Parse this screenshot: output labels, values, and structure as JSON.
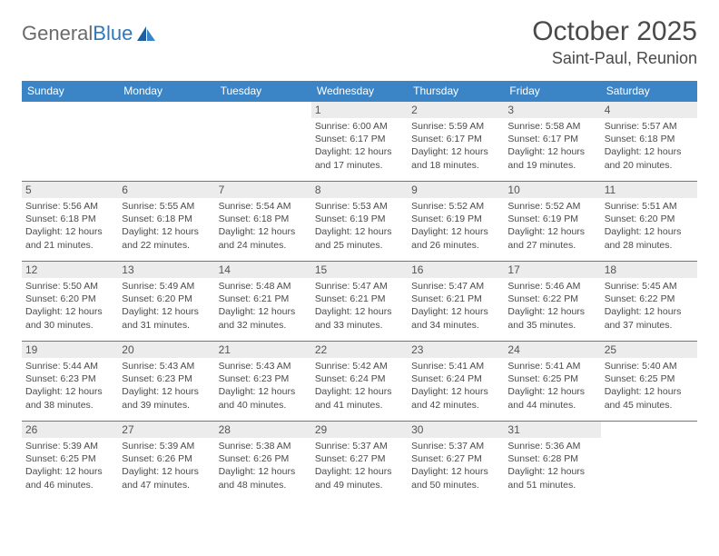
{
  "brand": {
    "name_part1": "General",
    "name_part2": "Blue"
  },
  "title": "October 2025",
  "location": "Saint-Paul, Reunion",
  "colors": {
    "header_bg": "#3b85c6",
    "header_text": "#ffffff",
    "daynum_bg": "#ececec",
    "row_border": "#3b85c6",
    "brand_gray": "#6a6a6a",
    "brand_blue": "#2f78bd"
  },
  "weekday_labels": [
    "Sunday",
    "Monday",
    "Tuesday",
    "Wednesday",
    "Thursday",
    "Friday",
    "Saturday"
  ],
  "weeks": [
    [
      {
        "day": "",
        "sunrise": "",
        "sunset": "",
        "daylight": ""
      },
      {
        "day": "",
        "sunrise": "",
        "sunset": "",
        "daylight": ""
      },
      {
        "day": "",
        "sunrise": "",
        "sunset": "",
        "daylight": ""
      },
      {
        "day": "1",
        "sunrise": "Sunrise: 6:00 AM",
        "sunset": "Sunset: 6:17 PM",
        "daylight": "Daylight: 12 hours and 17 minutes."
      },
      {
        "day": "2",
        "sunrise": "Sunrise: 5:59 AM",
        "sunset": "Sunset: 6:17 PM",
        "daylight": "Daylight: 12 hours and 18 minutes."
      },
      {
        "day": "3",
        "sunrise": "Sunrise: 5:58 AM",
        "sunset": "Sunset: 6:17 PM",
        "daylight": "Daylight: 12 hours and 19 minutes."
      },
      {
        "day": "4",
        "sunrise": "Sunrise: 5:57 AM",
        "sunset": "Sunset: 6:18 PM",
        "daylight": "Daylight: 12 hours and 20 minutes."
      }
    ],
    [
      {
        "day": "5",
        "sunrise": "Sunrise: 5:56 AM",
        "sunset": "Sunset: 6:18 PM",
        "daylight": "Daylight: 12 hours and 21 minutes."
      },
      {
        "day": "6",
        "sunrise": "Sunrise: 5:55 AM",
        "sunset": "Sunset: 6:18 PM",
        "daylight": "Daylight: 12 hours and 22 minutes."
      },
      {
        "day": "7",
        "sunrise": "Sunrise: 5:54 AM",
        "sunset": "Sunset: 6:18 PM",
        "daylight": "Daylight: 12 hours and 24 minutes."
      },
      {
        "day": "8",
        "sunrise": "Sunrise: 5:53 AM",
        "sunset": "Sunset: 6:19 PM",
        "daylight": "Daylight: 12 hours and 25 minutes."
      },
      {
        "day": "9",
        "sunrise": "Sunrise: 5:52 AM",
        "sunset": "Sunset: 6:19 PM",
        "daylight": "Daylight: 12 hours and 26 minutes."
      },
      {
        "day": "10",
        "sunrise": "Sunrise: 5:52 AM",
        "sunset": "Sunset: 6:19 PM",
        "daylight": "Daylight: 12 hours and 27 minutes."
      },
      {
        "day": "11",
        "sunrise": "Sunrise: 5:51 AM",
        "sunset": "Sunset: 6:20 PM",
        "daylight": "Daylight: 12 hours and 28 minutes."
      }
    ],
    [
      {
        "day": "12",
        "sunrise": "Sunrise: 5:50 AM",
        "sunset": "Sunset: 6:20 PM",
        "daylight": "Daylight: 12 hours and 30 minutes."
      },
      {
        "day": "13",
        "sunrise": "Sunrise: 5:49 AM",
        "sunset": "Sunset: 6:20 PM",
        "daylight": "Daylight: 12 hours and 31 minutes."
      },
      {
        "day": "14",
        "sunrise": "Sunrise: 5:48 AM",
        "sunset": "Sunset: 6:21 PM",
        "daylight": "Daylight: 12 hours and 32 minutes."
      },
      {
        "day": "15",
        "sunrise": "Sunrise: 5:47 AM",
        "sunset": "Sunset: 6:21 PM",
        "daylight": "Daylight: 12 hours and 33 minutes."
      },
      {
        "day": "16",
        "sunrise": "Sunrise: 5:47 AM",
        "sunset": "Sunset: 6:21 PM",
        "daylight": "Daylight: 12 hours and 34 minutes."
      },
      {
        "day": "17",
        "sunrise": "Sunrise: 5:46 AM",
        "sunset": "Sunset: 6:22 PM",
        "daylight": "Daylight: 12 hours and 35 minutes."
      },
      {
        "day": "18",
        "sunrise": "Sunrise: 5:45 AM",
        "sunset": "Sunset: 6:22 PM",
        "daylight": "Daylight: 12 hours and 37 minutes."
      }
    ],
    [
      {
        "day": "19",
        "sunrise": "Sunrise: 5:44 AM",
        "sunset": "Sunset: 6:23 PM",
        "daylight": "Daylight: 12 hours and 38 minutes."
      },
      {
        "day": "20",
        "sunrise": "Sunrise: 5:43 AM",
        "sunset": "Sunset: 6:23 PM",
        "daylight": "Daylight: 12 hours and 39 minutes."
      },
      {
        "day": "21",
        "sunrise": "Sunrise: 5:43 AM",
        "sunset": "Sunset: 6:23 PM",
        "daylight": "Daylight: 12 hours and 40 minutes."
      },
      {
        "day": "22",
        "sunrise": "Sunrise: 5:42 AM",
        "sunset": "Sunset: 6:24 PM",
        "daylight": "Daylight: 12 hours and 41 minutes."
      },
      {
        "day": "23",
        "sunrise": "Sunrise: 5:41 AM",
        "sunset": "Sunset: 6:24 PM",
        "daylight": "Daylight: 12 hours and 42 minutes."
      },
      {
        "day": "24",
        "sunrise": "Sunrise: 5:41 AM",
        "sunset": "Sunset: 6:25 PM",
        "daylight": "Daylight: 12 hours and 44 minutes."
      },
      {
        "day": "25",
        "sunrise": "Sunrise: 5:40 AM",
        "sunset": "Sunset: 6:25 PM",
        "daylight": "Daylight: 12 hours and 45 minutes."
      }
    ],
    [
      {
        "day": "26",
        "sunrise": "Sunrise: 5:39 AM",
        "sunset": "Sunset: 6:25 PM",
        "daylight": "Daylight: 12 hours and 46 minutes."
      },
      {
        "day": "27",
        "sunrise": "Sunrise: 5:39 AM",
        "sunset": "Sunset: 6:26 PM",
        "daylight": "Daylight: 12 hours and 47 minutes."
      },
      {
        "day": "28",
        "sunrise": "Sunrise: 5:38 AM",
        "sunset": "Sunset: 6:26 PM",
        "daylight": "Daylight: 12 hours and 48 minutes."
      },
      {
        "day": "29",
        "sunrise": "Sunrise: 5:37 AM",
        "sunset": "Sunset: 6:27 PM",
        "daylight": "Daylight: 12 hours and 49 minutes."
      },
      {
        "day": "30",
        "sunrise": "Sunrise: 5:37 AM",
        "sunset": "Sunset: 6:27 PM",
        "daylight": "Daylight: 12 hours and 50 minutes."
      },
      {
        "day": "31",
        "sunrise": "Sunrise: 5:36 AM",
        "sunset": "Sunset: 6:28 PM",
        "daylight": "Daylight: 12 hours and 51 minutes."
      },
      {
        "day": "",
        "sunrise": "",
        "sunset": "",
        "daylight": ""
      }
    ]
  ]
}
